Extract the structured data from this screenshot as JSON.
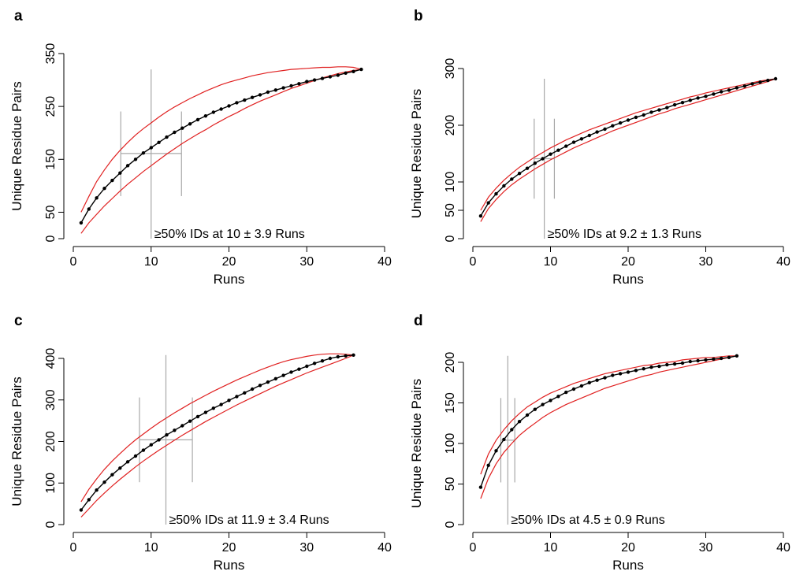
{
  "colors": {
    "mean_line": "#000000",
    "bounds": "#e02020",
    "guides": "#a8a8a8"
  },
  "chart_data": [
    {
      "panel": "a",
      "type": "line",
      "xlabel": "Runs",
      "ylabel": "Unique Residue Pairs",
      "xlim": [
        0,
        40
      ],
      "ylim": [
        0,
        350
      ],
      "xticks": [
        0,
        10,
        20,
        30,
        40
      ],
      "yticks": [
        0,
        50,
        150,
        250,
        350
      ],
      "grid": false,
      "annotation": "≥50% IDs at 10 ± 3.9 Runs",
      "threshold": {
        "mean": 10,
        "sd": 3.9,
        "half_max": 161,
        "max": 320
      },
      "x": [
        1,
        2,
        3,
        4,
        5,
        6,
        7,
        8,
        9,
        10,
        11,
        12,
        13,
        14,
        15,
        16,
        17,
        18,
        19,
        20,
        21,
        22,
        23,
        24,
        25,
        26,
        27,
        28,
        29,
        30,
        31,
        32,
        33,
        34,
        35,
        36,
        37
      ],
      "series": [
        {
          "values": [
            30,
            56,
            77,
            95,
            110,
            124,
            138,
            150,
            162,
            172,
            182,
            192,
            201,
            209,
            217,
            225,
            232,
            239,
            245,
            251,
            257,
            262,
            267,
            272,
            277,
            281,
            285,
            289,
            293,
            297,
            300,
            303,
            306,
            309,
            313,
            316,
            320
          ]
        },
        {
          "values": [
            50,
            80,
            108,
            130,
            150,
            167,
            182,
            196,
            208,
            219,
            230,
            240,
            249,
            257,
            265,
            272,
            279,
            285,
            291,
            296,
            300,
            304,
            308,
            311,
            314,
            316,
            318,
            320,
            321,
            322,
            323,
            324,
            324,
            325,
            325,
            324,
            320
          ]
        },
        {
          "values": [
            10,
            30,
            46,
            62,
            76,
            90,
            103,
            115,
            127,
            138,
            149,
            160,
            170,
            180,
            189,
            198,
            206,
            215,
            223,
            231,
            238,
            246,
            253,
            260,
            266,
            272,
            278,
            284,
            289,
            294,
            299,
            304,
            308,
            312,
            315,
            318,
            320
          ]
        }
      ]
    },
    {
      "panel": "b",
      "type": "line",
      "xlabel": "Runs",
      "ylabel": "Unique Residue Pairs",
      "xlim": [
        0,
        40
      ],
      "ylim": [
        0,
        300
      ],
      "xticks": [
        0,
        10,
        20,
        30,
        40
      ],
      "yticks": [
        0,
        50,
        100,
        200,
        300
      ],
      "grid": false,
      "annotation": "≥50% IDs at 9.2 ± 1.3 Runs",
      "threshold": {
        "mean": 9.2,
        "sd": 1.3,
        "half_max": 141,
        "max": 282
      },
      "x": [
        1,
        2,
        3,
        4,
        5,
        6,
        7,
        8,
        9,
        10,
        11,
        12,
        13,
        14,
        15,
        16,
        17,
        18,
        19,
        20,
        21,
        22,
        23,
        24,
        25,
        26,
        27,
        28,
        29,
        30,
        31,
        32,
        33,
        34,
        35,
        36,
        37,
        38,
        39
      ],
      "series": [
        {
          "values": [
            40,
            63,
            79,
            93,
            105,
            115,
            124,
            133,
            141,
            149,
            156,
            163,
            170,
            176,
            182,
            188,
            193,
            199,
            204,
            209,
            214,
            218,
            223,
            227,
            231,
            236,
            240,
            244,
            248,
            251,
            255,
            259,
            262,
            266,
            269,
            273,
            276,
            279,
            282
          ]
        },
        {
          "values": [
            50,
            73,
            89,
            103,
            115,
            126,
            135,
            144,
            152,
            160,
            167,
            174,
            180,
            186,
            192,
            197,
            202,
            207,
            212,
            217,
            222,
            226,
            230,
            234,
            238,
            242,
            246,
            250,
            253,
            257,
            260,
            263,
            266,
            269,
            272,
            275,
            278,
            280,
            282
          ]
        },
        {
          "values": [
            30,
            53,
            69,
            83,
            95,
            105,
            114,
            123,
            131,
            139,
            146,
            153,
            160,
            166,
            172,
            178,
            184,
            190,
            195,
            200,
            205,
            210,
            215,
            220,
            224,
            229,
            233,
            237,
            241,
            245,
            249,
            253,
            257,
            261,
            265,
            269,
            273,
            277,
            282
          ]
        }
      ]
    },
    {
      "panel": "c",
      "type": "line",
      "xlabel": "Runs",
      "ylabel": "Unique Residue Pairs",
      "xlim": [
        0,
        40
      ],
      "ylim": [
        0,
        400
      ],
      "xticks": [
        0,
        10,
        20,
        30,
        40
      ],
      "yticks": [
        0,
        100,
        200,
        300,
        400
      ],
      "grid": false,
      "annotation": "≥50% IDs at 11.9 ± 3.4 Runs",
      "threshold": {
        "mean": 11.9,
        "sd": 3.4,
        "half_max": 204,
        "max": 408
      },
      "x": [
        1,
        2,
        3,
        4,
        5,
        6,
        7,
        8,
        9,
        10,
        11,
        12,
        13,
        14,
        15,
        16,
        17,
        18,
        19,
        20,
        21,
        22,
        23,
        24,
        25,
        26,
        27,
        28,
        29,
        30,
        31,
        32,
        33,
        34,
        35,
        36
      ],
      "series": [
        {
          "values": [
            35,
            60,
            83,
            102,
            120,
            136,
            151,
            165,
            179,
            192,
            204,
            216,
            227,
            238,
            249,
            260,
            270,
            280,
            289,
            299,
            308,
            317,
            326,
            335,
            343,
            351,
            359,
            367,
            374,
            381,
            388,
            394,
            400,
            404,
            406,
            408
          ]
        },
        {
          "values": [
            55,
            85,
            110,
            133,
            153,
            171,
            188,
            204,
            218,
            232,
            245,
            257,
            269,
            280,
            291,
            301,
            311,
            321,
            330,
            339,
            348,
            356,
            364,
            372,
            379,
            386,
            392,
            397,
            401,
            405,
            408,
            410,
            411,
            411,
            410,
            408
          ]
        },
        {
          "values": [
            18,
            38,
            58,
            76,
            93,
            109,
            124,
            139,
            153,
            166,
            179,
            191,
            203,
            215,
            226,
            237,
            248,
            258,
            268,
            278,
            288,
            297,
            306,
            315,
            324,
            333,
            341,
            349,
            357,
            365,
            372,
            379,
            386,
            393,
            400,
            408
          ]
        }
      ]
    },
    {
      "panel": "d",
      "type": "line",
      "xlabel": "Runs",
      "ylabel": "Unique Residue Pairs",
      "xlim": [
        0,
        40
      ],
      "ylim": [
        0,
        200
      ],
      "xticks": [
        0,
        10,
        20,
        30,
        40
      ],
      "yticks": [
        0,
        50,
        100,
        150,
        200
      ],
      "grid": false,
      "annotation": "≥50% IDs at 4.5 ± 0.9 Runs",
      "threshold": {
        "mean": 4.5,
        "sd": 0.9,
        "half_max": 104,
        "max": 208
      },
      "x": [
        1,
        2,
        3,
        4,
        5,
        6,
        7,
        8,
        9,
        10,
        11,
        12,
        13,
        14,
        15,
        16,
        17,
        18,
        19,
        20,
        21,
        22,
        23,
        24,
        25,
        26,
        27,
        28,
        29,
        30,
        31,
        32,
        33,
        34
      ],
      "series": [
        {
          "values": [
            46,
            73,
            91,
            105,
            117,
            127,
            135,
            142,
            148,
            153,
            158,
            163,
            167,
            171,
            175,
            178,
            181,
            184,
            186,
            188,
            190,
            192,
            194,
            195,
            197,
            198,
            199,
            201,
            202,
            203,
            204,
            205,
            206,
            208
          ]
        },
        {
          "values": [
            62,
            87,
            104,
            117,
            128,
            137,
            145,
            151,
            157,
            162,
            166,
            170,
            174,
            177,
            180,
            183,
            186,
            188,
            190,
            192,
            194,
            196,
            197,
            199,
            200,
            201,
            203,
            204,
            205,
            206,
            206,
            207,
            208,
            208
          ]
        },
        {
          "values": [
            32,
            57,
            75,
            89,
            100,
            110,
            118,
            125,
            132,
            138,
            143,
            148,
            152,
            156,
            160,
            164,
            168,
            171,
            174,
            177,
            180,
            183,
            185,
            188,
            190,
            192,
            194,
            196,
            198,
            200,
            202,
            204,
            206,
            208
          ]
        }
      ]
    }
  ]
}
